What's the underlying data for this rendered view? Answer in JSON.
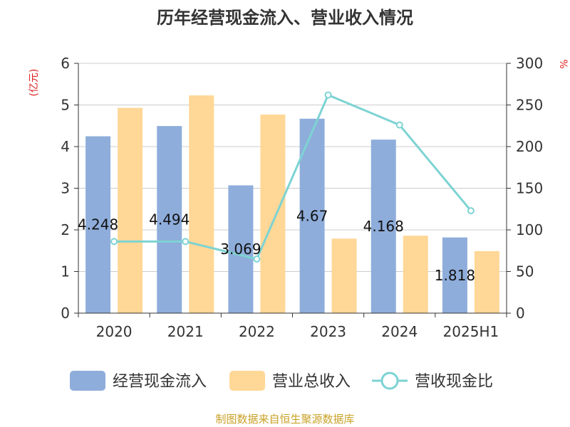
{
  "chart_data": {
    "type": "bar",
    "title": "历年经营现金流入、营业收入情况",
    "categories": [
      "2020",
      "2021",
      "2022",
      "2023",
      "2024",
      "2025H1"
    ],
    "y_left": {
      "unit": "(亿元)",
      "min": 0,
      "max": 6,
      "ticks": [
        0,
        1,
        2,
        3,
        4,
        5,
        6
      ]
    },
    "y_right": {
      "unit": "%",
      "min": 0,
      "max": 300,
      "ticks": [
        0,
        50,
        100,
        150,
        200,
        250,
        300
      ]
    },
    "series": [
      {
        "name": "经营现金流入",
        "type": "bar",
        "axis": "left",
        "color": "#8EADDB",
        "values": [
          4.248,
          4.494,
          3.069,
          4.67,
          4.168,
          1.818
        ],
        "data_labels": [
          "4.248",
          "4.494",
          "3.069",
          "4.67",
          "4.168",
          "1.818"
        ]
      },
      {
        "name": "营业总收入",
        "type": "bar",
        "axis": "left",
        "color": "#FFD796",
        "values": [
          4.93,
          5.23,
          4.77,
          1.79,
          1.86,
          1.49
        ]
      },
      {
        "name": "营收现金比",
        "type": "line",
        "axis": "right",
        "color": "#7DD3D3",
        "values": [
          86,
          86,
          65,
          262,
          226,
          123
        ]
      }
    ],
    "grid": true,
    "legend": "bottom"
  },
  "source_note": "制图数据来自恒生聚源数据库"
}
